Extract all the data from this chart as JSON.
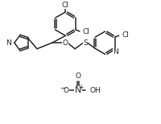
{
  "background_color": "#ffffff",
  "line_color": "#2a2a2a",
  "line_width": 1.1,
  "font_size": 6.5,
  "fig_width": 2.0,
  "fig_height": 1.54,
  "dpi": 100,
  "xlim": [
    0,
    10
  ],
  "ylim": [
    0,
    7.7
  ]
}
